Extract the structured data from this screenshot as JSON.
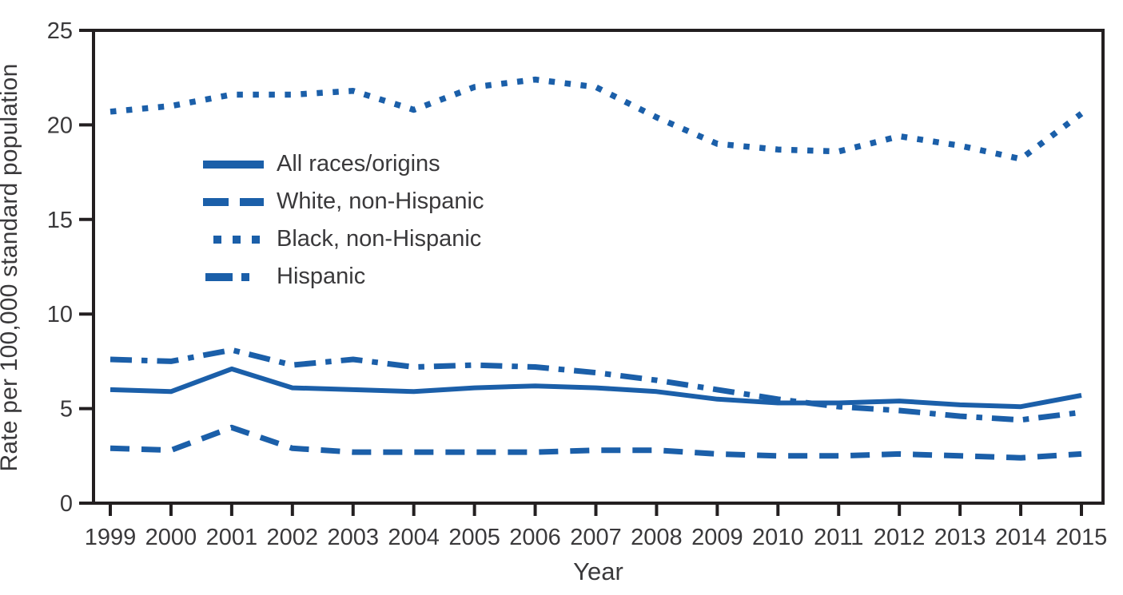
{
  "chart_data": {
    "type": "line",
    "title": "",
    "xlabel": "Year",
    "ylabel": "Rate per 100,000 standard population",
    "x": [
      1999,
      2000,
      2001,
      2002,
      2003,
      2004,
      2005,
      2006,
      2007,
      2008,
      2009,
      2010,
      2011,
      2012,
      2013,
      2014,
      2015
    ],
    "ylim": [
      0,
      25
    ],
    "y_ticks": [
      0,
      5,
      10,
      15,
      20,
      25
    ],
    "grid": false,
    "legend_position": "inside-upper-left",
    "series": [
      {
        "name": "All races/origins",
        "style": "solid",
        "values": [
          6.0,
          5.9,
          7.1,
          6.1,
          6.0,
          5.9,
          6.1,
          6.2,
          6.1,
          5.9,
          5.5,
          5.3,
          5.3,
          5.4,
          5.2,
          5.1,
          5.7
        ]
      },
      {
        "name": "White, non-Hispanic",
        "style": "dashed",
        "values": [
          2.9,
          2.8,
          4.0,
          2.9,
          2.7,
          2.7,
          2.7,
          2.7,
          2.8,
          2.8,
          2.6,
          2.5,
          2.5,
          2.6,
          2.5,
          2.4,
          2.6
        ]
      },
      {
        "name": "Black, non-Hispanic",
        "style": "dotted",
        "values": [
          20.7,
          21.0,
          21.6,
          21.6,
          21.8,
          20.8,
          22.0,
          22.4,
          22.0,
          20.4,
          19.0,
          18.7,
          18.6,
          19.4,
          18.9,
          18.2,
          20.6
        ]
      },
      {
        "name": "Hispanic",
        "style": "dash-dot",
        "values": [
          7.6,
          7.5,
          8.1,
          7.3,
          7.6,
          7.2,
          7.3,
          7.2,
          6.9,
          6.5,
          6.0,
          5.5,
          5.1,
          4.9,
          4.6,
          4.4,
          4.8
        ]
      }
    ]
  },
  "colors": {
    "line_blue": "#1B5FA9",
    "text": "#3A393B",
    "axis": "#231F20",
    "background": "#FFFFFF"
  }
}
